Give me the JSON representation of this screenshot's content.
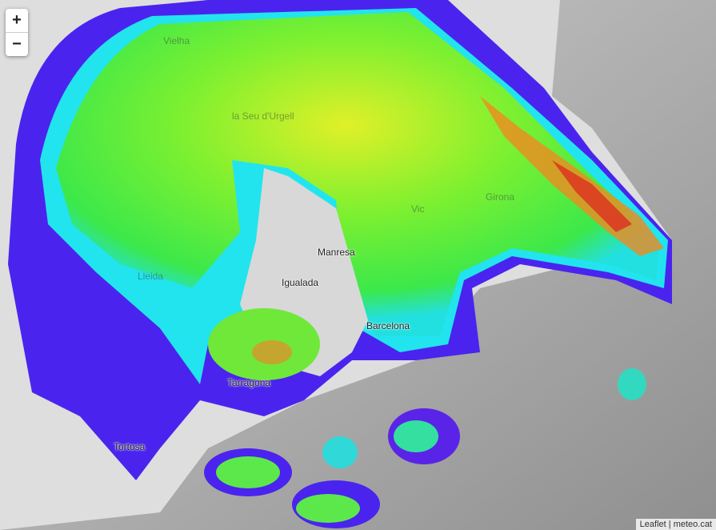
{
  "map": {
    "zoom_in_label": "+",
    "zoom_out_label": "−",
    "labels": {
      "vielha": "Vielha",
      "seu_urgell": "la Seu d'Urgell",
      "vic": "Vic",
      "girona": "Girona",
      "lleida": "Lleida",
      "manresa": "Manresa",
      "igualada": "Igualada",
      "barcelona": "Barcelona",
      "tarragona": "Tarragona",
      "tortosa": "Tortosa"
    },
    "attribution": {
      "leaflet": "Leaflet",
      "separator": " | ",
      "source": "meteo.cat"
    },
    "radar_colors": [
      "#5a1fe0",
      "#3a2cf5",
      "#22e8f0",
      "#33ee33",
      "#8ef02a",
      "#e8f020",
      "#f07a20",
      "#e02020"
    ]
  }
}
